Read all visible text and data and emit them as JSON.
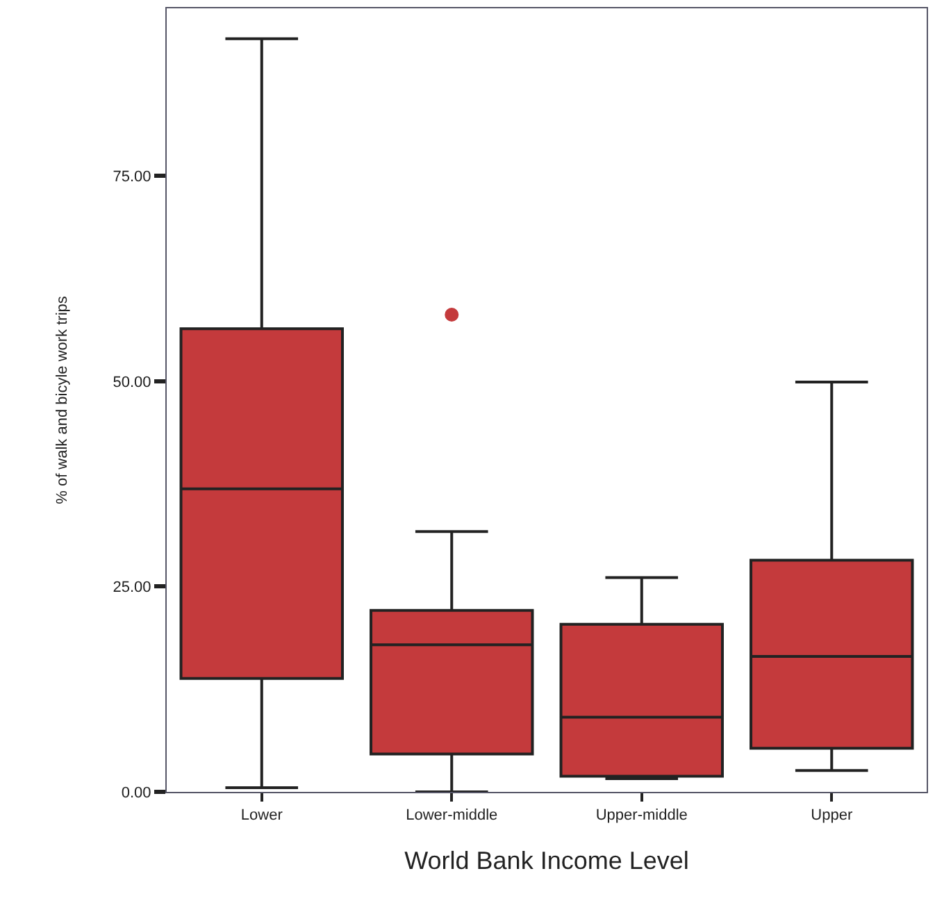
{
  "chart_data": {
    "type": "box",
    "xlabel": "World Bank Income Level",
    "ylabel": "% of walk and bicyle work trips",
    "categories": [
      "Lower",
      "Lower-middle",
      "Upper-middle",
      "Upper"
    ],
    "color": "#c43a3c",
    "boxes": [
      {
        "low": 0.5,
        "q1": 13.8,
        "median": 36.9,
        "q3": 56.4,
        "high": 91.7
      },
      {
        "low": 0,
        "q1": 4.6,
        "median": 17.9,
        "q3": 22.1,
        "high": 31.7,
        "outliers": [
          58.1
        ]
      },
      {
        "low": 1.6,
        "q1": 1.9,
        "median": 9.1,
        "q3": 20.4,
        "high": 26.1
      },
      {
        "low": 2.6,
        "q1": 5.3,
        "median": 16.5,
        "q3": 28.2,
        "high": 49.9
      }
    ],
    "ylim": [
      0,
      95.4
    ],
    "yticks": [
      {
        "value": 0,
        "label": "0.00"
      },
      {
        "value": 25,
        "label": "25.00"
      },
      {
        "value": 50,
        "label": "50.00"
      },
      {
        "value": 75,
        "label": "75.00"
      }
    ],
    "grid": false
  }
}
